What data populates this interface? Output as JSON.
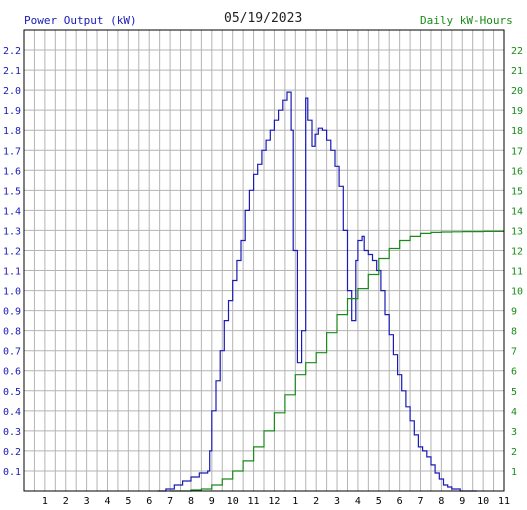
{
  "chart_data": {
    "type": "line",
    "title": "05/19/2023",
    "ylabel": "Power Output (kW)",
    "y2label": "Daily kW-Hours",
    "ylim": [
      0,
      2.3
    ],
    "y2lim": [
      0,
      23
    ],
    "xlim": [
      0,
      23
    ],
    "grid": true,
    "x_ticks": [
      {
        "pos": 1,
        "label": "1"
      },
      {
        "pos": 2,
        "label": "2"
      },
      {
        "pos": 3,
        "label": "3"
      },
      {
        "pos": 4,
        "label": "4"
      },
      {
        "pos": 5,
        "label": "5"
      },
      {
        "pos": 6,
        "label": "6"
      },
      {
        "pos": 7,
        "label": "7"
      },
      {
        "pos": 8,
        "label": "8"
      },
      {
        "pos": 9,
        "label": "9"
      },
      {
        "pos": 10,
        "label": "10"
      },
      {
        "pos": 11,
        "label": "11"
      },
      {
        "pos": 12,
        "label": "12"
      },
      {
        "pos": 13,
        "label": "1"
      },
      {
        "pos": 14,
        "label": "2"
      },
      {
        "pos": 15,
        "label": "3"
      },
      {
        "pos": 16,
        "label": "4"
      },
      {
        "pos": 17,
        "label": "5"
      },
      {
        "pos": 18,
        "label": "6"
      },
      {
        "pos": 19,
        "label": "7"
      },
      {
        "pos": 20,
        "label": "8"
      },
      {
        "pos": 21,
        "label": "9"
      },
      {
        "pos": 22,
        "label": "10"
      },
      {
        "pos": 23,
        "label": "11"
      }
    ],
    "y_ticks": [
      "0.1",
      "0.2",
      "0.3",
      "0.4",
      "0.5",
      "0.6",
      "0.7",
      "0.8",
      "0.9",
      "1.0",
      "1.1",
      "1.2",
      "1.3",
      "1.4",
      "1.5",
      "1.6",
      "1.7",
      "1.8",
      "1.9",
      "2.0",
      "2.1",
      "2.2"
    ],
    "y2_ticks": [
      "1",
      "2",
      "3",
      "4",
      "5",
      "6",
      "7",
      "8",
      "9",
      "10",
      "11",
      "12",
      "13",
      "14",
      "15",
      "16",
      "17",
      "18",
      "19",
      "20",
      "21",
      "22"
    ],
    "series": [
      {
        "name": "Power Output (kW)",
        "axis": "left",
        "color": "#1a1ab8",
        "x": [
          6.4,
          6.8,
          7.2,
          7.6,
          8.0,
          8.4,
          8.8,
          8.9,
          9.0,
          9.2,
          9.4,
          9.6,
          9.8,
          10.0,
          10.2,
          10.4,
          10.6,
          10.8,
          11.0,
          11.2,
          11.4,
          11.6,
          11.8,
          12.0,
          12.2,
          12.4,
          12.6,
          12.8,
          12.9,
          13.1,
          13.3,
          13.5,
          13.6,
          13.8,
          13.95,
          14.1,
          14.3,
          14.5,
          14.7,
          14.9,
          15.1,
          15.3,
          15.5,
          15.7,
          15.9,
          16.0,
          16.2,
          16.3,
          16.5,
          16.7,
          16.9,
          17.1,
          17.3,
          17.5,
          17.7,
          17.9,
          18.1,
          18.3,
          18.5,
          18.7,
          18.9,
          19.1,
          19.3,
          19.5,
          19.7,
          19.9,
          20.1,
          20.3,
          20.5,
          20.7,
          20.9,
          21.1,
          21.3,
          21.5,
          21.7
        ],
        "values": [
          0.0,
          0.01,
          0.03,
          0.05,
          0.07,
          0.09,
          0.1,
          0.2,
          0.4,
          0.55,
          0.7,
          0.85,
          0.95,
          1.05,
          1.15,
          1.25,
          1.4,
          1.5,
          1.58,
          1.63,
          1.7,
          1.75,
          1.8,
          1.85,
          1.9,
          1.95,
          1.99,
          1.8,
          1.2,
          0.64,
          0.8,
          1.96,
          1.85,
          1.72,
          1.78,
          1.81,
          1.8,
          1.75,
          1.7,
          1.62,
          1.52,
          1.3,
          1.0,
          0.85,
          1.15,
          1.25,
          1.27,
          1.2,
          1.18,
          1.15,
          1.1,
          1.0,
          0.88,
          0.78,
          0.68,
          0.58,
          0.5,
          0.42,
          0.35,
          0.28,
          0.22,
          0.2,
          0.17,
          0.13,
          0.09,
          0.06,
          0.03,
          0.02,
          0.01,
          0.01,
          0.0,
          0.0,
          0.0,
          0.0,
          0.0
        ]
      },
      {
        "name": "Daily kW-Hours",
        "axis": "right",
        "color": "#1a8a1a",
        "x": [
          7.0,
          8.0,
          8.5,
          9.0,
          9.5,
          10.0,
          10.5,
          11.0,
          11.5,
          12.0,
          12.5,
          13.0,
          13.5,
          14.0,
          14.5,
          15.0,
          15.5,
          16.0,
          16.5,
          17.0,
          17.5,
          18.0,
          18.5,
          19.0,
          19.5,
          20.0,
          20.5,
          21.0,
          22.0,
          23.0
        ],
        "values": [
          0.0,
          0.05,
          0.1,
          0.3,
          0.6,
          1.0,
          1.5,
          2.2,
          3.0,
          3.9,
          4.8,
          5.8,
          6.4,
          6.9,
          7.9,
          8.8,
          9.6,
          10.1,
          10.8,
          11.6,
          12.1,
          12.5,
          12.7,
          12.85,
          12.9,
          12.92,
          12.93,
          12.94,
          12.95,
          12.95
        ]
      }
    ]
  }
}
